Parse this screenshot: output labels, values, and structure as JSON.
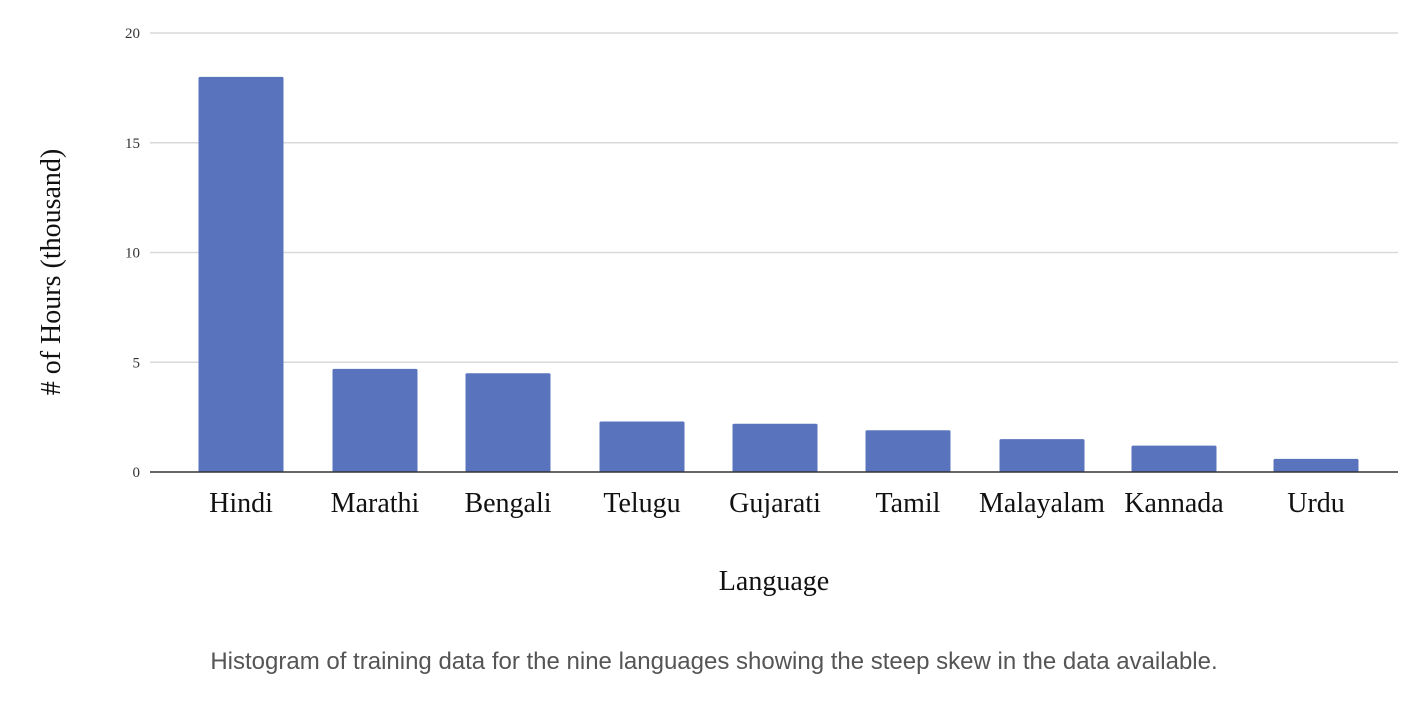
{
  "chart_data": {
    "type": "bar",
    "categories": [
      "Hindi",
      "Marathi",
      "Bengali",
      "Telugu",
      "Gujarati",
      "Tamil",
      "Malayalam",
      "Kannada",
      "Urdu"
    ],
    "values": [
      18.0,
      4.7,
      4.5,
      2.3,
      2.2,
      1.9,
      1.5,
      1.2,
      0.6
    ],
    "xlabel": "Language",
    "ylabel": "# of Hours (thousand)",
    "ylim": [
      0,
      20
    ],
    "yticks": [
      0,
      5,
      10,
      15,
      20
    ],
    "grid": true,
    "bar_color": "#5a73bd",
    "gridline_color": "#d9d9d9",
    "axis_color": "#333333"
  },
  "caption": "Histogram of training data for the nine languages showing the steep skew in the data available."
}
